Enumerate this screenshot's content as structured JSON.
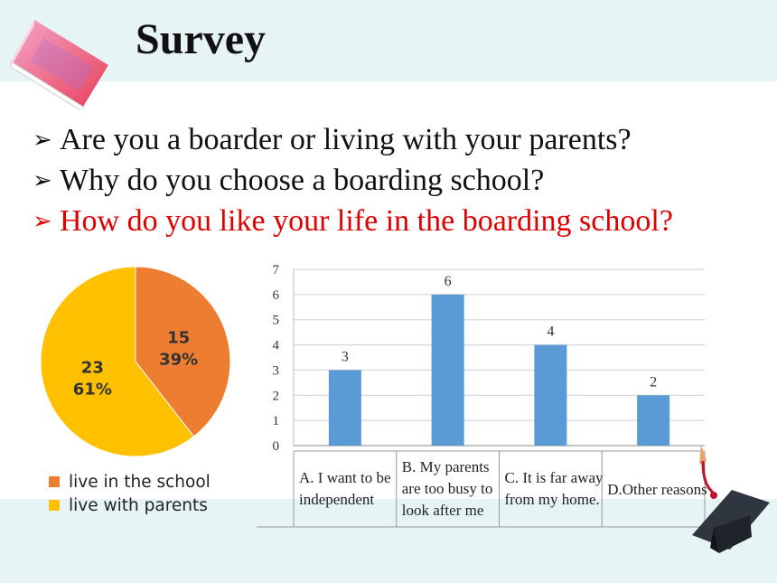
{
  "header": {
    "title": "Survey"
  },
  "questions": [
    "Are you a boarder or living with your parents?",
    "Why do you choose a boarding school?",
    "How do you like your life in the boarding school?"
  ],
  "colors": {
    "band": "#e7f4f5",
    "pie_school": "#ed7d31",
    "pie_parents": "#ffc000",
    "bar": "#5b9bd5",
    "highlight": "#e00000"
  },
  "chart_data": [
    {
      "type": "pie",
      "slices": [
        {
          "name": "live in the school",
          "value": 15,
          "percent_label": "39%"
        },
        {
          "name": "live with parents",
          "value": 23,
          "percent_label": "61%"
        }
      ],
      "legend": [
        "live in the school",
        "live with parents"
      ],
      "legend_position": "bottom-left"
    },
    {
      "type": "bar",
      "categories": [
        [
          "A. I want to be",
          "independent"
        ],
        [
          "B. My parents",
          "are too busy to",
          "look after me"
        ],
        [
          "C. It is far away",
          "from my home."
        ],
        [
          "D.Other reasons"
        ]
      ],
      "values": [
        3,
        6,
        4,
        2
      ],
      "ylim": [
        0,
        7
      ],
      "yticks": [
        0,
        1,
        2,
        3,
        4,
        5,
        6,
        7
      ],
      "grid": true,
      "data_labels": true
    }
  ]
}
